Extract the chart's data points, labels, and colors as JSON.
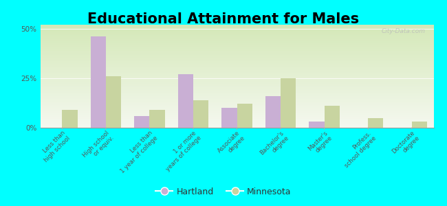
{
  "title": "Educational Attainment for Males",
  "categories": [
    "Less than\nhigh school",
    "High school\nor equiv.",
    "Less than\n1 year of college",
    "1 or more\nyears of college",
    "Associate\ndegree",
    "Bachelor's\ndegree",
    "Master's\ndegree",
    "Profess.\nschool degree",
    "Doctorate\ndegree"
  ],
  "hartland": [
    0.0,
    46.0,
    6.0,
    27.0,
    10.0,
    16.0,
    3.0,
    0.0,
    0.0
  ],
  "minnesota": [
    9.0,
    26.0,
    9.0,
    14.0,
    12.0,
    25.0,
    11.0,
    5.0,
    3.0
  ],
  "hartland_color": "#c9afd4",
  "minnesota_color": "#c8d4a0",
  "bg_color": "#00ffff",
  "gradient_top": "#d4e8b8",
  "gradient_bottom": "#f5f8f0",
  "title_fontsize": 15,
  "ylim": [
    0,
    52
  ],
  "yticks": [
    0,
    25,
    50
  ],
  "ytick_labels": [
    "0%",
    "25%",
    "50%"
  ],
  "watermark": "City-Data.com",
  "legend_hartland": "Hartland",
  "legend_minnesota": "Minnesota",
  "bar_width": 0.35
}
